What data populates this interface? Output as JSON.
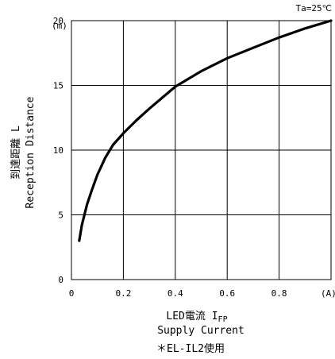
{
  "chart_data": {
    "type": "line",
    "annotation_top_right": "Ta=25℃",
    "y_unit": "(m)",
    "x_unit": "(A)",
    "ylabel_jp": "到達距離 L",
    "ylabel_en": "Reception Distance",
    "xlabel_jp": "LED電流 I",
    "xlabel_sub": "FP",
    "xlabel_en": "Supply Current",
    "footnote": "＊EL-IL2使用",
    "xlim": [
      0,
      1.0
    ],
    "ylim": [
      0,
      20
    ],
    "x_ticks": [
      {
        "value": 0,
        "label": "0"
      },
      {
        "value": 0.2,
        "label": "0.2"
      },
      {
        "value": 0.4,
        "label": "0.4"
      },
      {
        "value": 0.6,
        "label": "0.6"
      },
      {
        "value": 0.8,
        "label": "0.8"
      }
    ],
    "y_ticks": [
      {
        "value": 0,
        "label": "0"
      },
      {
        "value": 5,
        "label": "5"
      },
      {
        "value": 10,
        "label": "10"
      },
      {
        "value": 15,
        "label": "15"
      },
      {
        "value": 20,
        "label": "20"
      }
    ],
    "grid": true,
    "series": [
      {
        "x": [
          0.03,
          0.04,
          0.06,
          0.08,
          0.1,
          0.13,
          0.16,
          0.2,
          0.25,
          0.3,
          0.4,
          0.5,
          0.6,
          0.7,
          0.8,
          0.9,
          1.0
        ],
        "y": [
          3.0,
          4.2,
          5.8,
          7.0,
          8.1,
          9.4,
          10.4,
          11.3,
          12.3,
          13.2,
          14.9,
          16.1,
          17.1,
          17.9,
          18.7,
          19.4,
          20.0
        ]
      }
    ]
  }
}
